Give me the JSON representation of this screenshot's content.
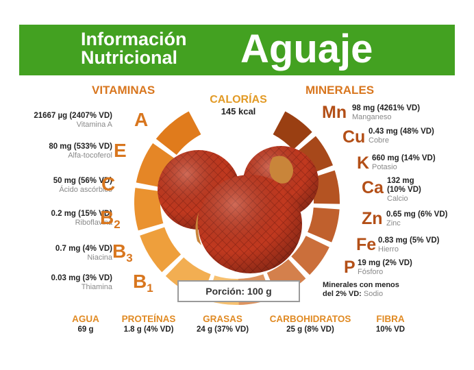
{
  "title": {
    "line1": "Información",
    "line2": "Nutricional",
    "main": "Aguaje"
  },
  "vitamins": {
    "heading": "VITAMINAS",
    "items": [
      {
        "value": "21667 µg (2407% VD)",
        "name": "Vitamina A",
        "symbol": "A",
        "sub": ""
      },
      {
        "value": "80 mg (533% VD)",
        "name": "Alfa-tocoferol",
        "symbol": "E",
        "sub": ""
      },
      {
        "value": "50 mg (56% VD)",
        "name": "Ácido ascórbico",
        "symbol": "C",
        "sub": ""
      },
      {
        "value": "0.2 mg (15% VD)",
        "name": "Riboflavina",
        "symbol": "B",
        "sub": "2"
      },
      {
        "value": "0.7 mg (4% VD)",
        "name": "Niacina",
        "symbol": "B",
        "sub": "3"
      },
      {
        "value": "0.03 mg (3% VD)",
        "name": "Thiamina",
        "symbol": "B",
        "sub": "1"
      }
    ]
  },
  "calories": {
    "label": "CALORÍAS",
    "value": "145 kcal"
  },
  "minerals": {
    "heading": "MINERALES",
    "items": [
      {
        "symbol": "Mn",
        "value": "98 mg (4261% VD)",
        "name": "Manganeso"
      },
      {
        "symbol": "Cu",
        "value": "0.43 mg (48% VD)",
        "name": "Cobre"
      },
      {
        "symbol": "K",
        "value": "660 mg (14% VD)",
        "name": "Potasio"
      },
      {
        "symbol": "Ca",
        "value": "132 mg",
        "value2": "(10% VD)",
        "name": "Calcio"
      },
      {
        "symbol": "Zn",
        "value": "0.65 mg (6% VD)",
        "name": "Zinc"
      },
      {
        "symbol": "Fe",
        "value": "0.83 mg (5% VD)",
        "name": "Hierro"
      },
      {
        "symbol": "P",
        "value": "19 mg (2% VD)",
        "name": "Fósforo"
      }
    ],
    "minor_line1": "Minerales con menos",
    "minor_line2": "del 2% VD:",
    "minor_value": "Sodio"
  },
  "portion": "Porción: 100 g",
  "bottom": [
    {
      "label": "AGUA",
      "value": "69 g"
    },
    {
      "label": "PROTEÍNAS",
      "value": "1.8 g (4% VD)"
    },
    {
      "label": "GRASAS",
      "value": "24 g (37% VD)"
    },
    {
      "label": "CARBOHIDRATOS",
      "value": "25 g (8% VD)"
    },
    {
      "label": "FIBRA",
      "value": "10% VD"
    }
  ],
  "colors": {
    "green": "#43a121",
    "orange": "#d8761e",
    "brown": "#b34f17",
    "fruit": "#b8321f"
  }
}
